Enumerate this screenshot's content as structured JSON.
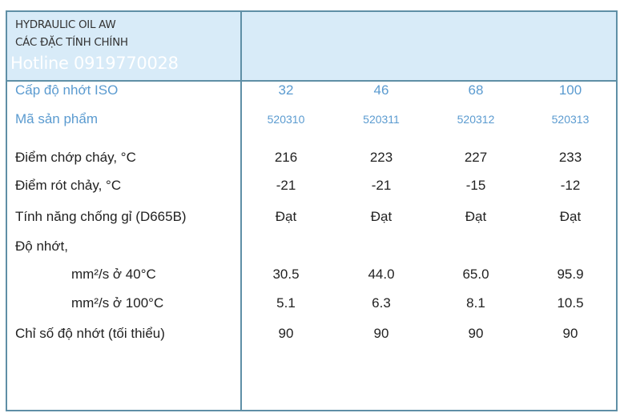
{
  "header": {
    "title": "HYDRAULIC OIL AW",
    "subtitle": "CÁC ĐẶC TÍNH CHÍNH",
    "watermark": "Hotline 0919770028"
  },
  "accent_color": "#5b9bd0",
  "header_bg": "#d8ebf8",
  "rows": [
    {
      "label": "Cấp độ nhớt ISO",
      "values": [
        "32",
        "46",
        "68",
        "100"
      ]
    },
    {
      "label": "Mã sản phẩm",
      "values": [
        "520310",
        "520311",
        "520312",
        "520313"
      ]
    },
    {
      "label": "Điểm chớp cháy, °C",
      "values": [
        "216",
        "223",
        "227",
        "233"
      ]
    },
    {
      "label": "Điểm rót chảy, °C",
      "values": [
        "-21",
        "-21",
        "-15",
        "-12"
      ]
    },
    {
      "label": "Tính năng chống gỉ (D665B)",
      "values": [
        "Đạt",
        "Đạt",
        "Đạt",
        "Đạt"
      ]
    },
    {
      "label": "Độ nhớt,",
      "values": []
    },
    {
      "label": "mm²/s ở 40°C",
      "values": [
        "30.5",
        "44.0",
        "65.0",
        "95.9"
      ]
    },
    {
      "label": "mm²/s ở 100°C",
      "values": [
        "5.1",
        "6.3",
        "8.1",
        "10.5"
      ]
    },
    {
      "label": "Chỉ số độ nhớt (tối thiểu)",
      "values": [
        "90",
        "90",
        "90",
        "90"
      ]
    }
  ]
}
